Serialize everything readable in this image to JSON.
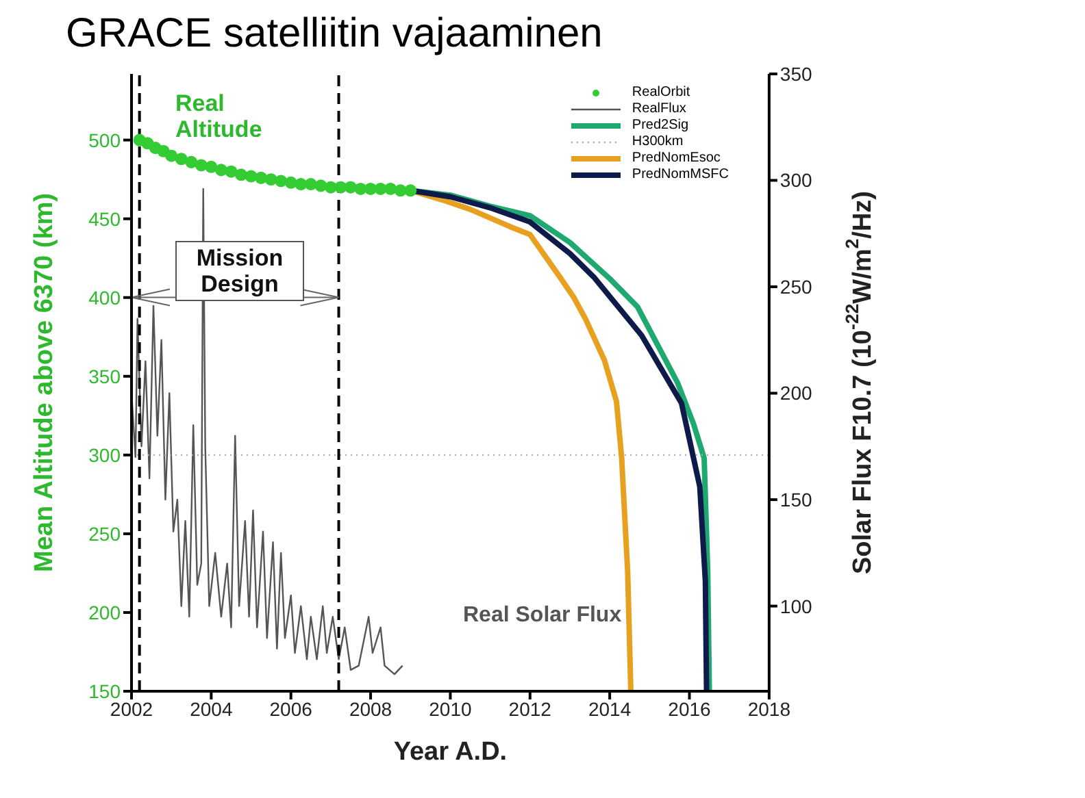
{
  "chart_data": {
    "type": "line",
    "title": "GRACE satelliitin vajaaminen",
    "xlabel": "Year A.D.",
    "ylabel": "Mean Altitude above 6370 (km)",
    "y2label": "Solar Flux F10.7 (10$^{-22}$W/m$^{2}$/Hz)",
    "xlim": [
      2002,
      2018
    ],
    "xticks": [
      2002,
      2004,
      2006,
      2008,
      2010,
      2012,
      2014,
      2016,
      2018
    ],
    "ylim": [
      150,
      542
    ],
    "yticks": [
      150,
      200,
      250,
      300,
      350,
      400,
      450,
      500
    ],
    "y2lim": [
      60,
      350
    ],
    "y2ticks": [
      100,
      150,
      200,
      250,
      300,
      350
    ],
    "legend": "top right",
    "series": [
      {
        "name": "RealOrbit",
        "type": "scatter",
        "color": "#33cc33",
        "x": [
          2002.2,
          2002.4,
          2002.6,
          2002.8,
          2003,
          2003.25,
          2003.5,
          2003.75,
          2004,
          2004.25,
          2004.5,
          2004.75,
          2005,
          2005.25,
          2005.5,
          2005.75,
          2006,
          2006.25,
          2006.5,
          2006.75,
          2007,
          2007.25,
          2007.5,
          2007.75,
          2008,
          2008.25,
          2008.5,
          2008.75,
          2009
        ],
        "values": [
          500,
          498,
          495,
          493,
          490,
          488,
          486,
          484,
          483,
          481,
          480,
          478,
          477,
          476,
          475,
          474,
          473,
          472,
          472,
          471,
          470,
          470,
          470,
          469,
          469,
          469,
          469,
          468,
          468
        ]
      },
      {
        "name": "RealFlux",
        "axis": "y2",
        "color": "#555555",
        "x": [
          2002.0,
          2002.1,
          2002.15,
          2002.25,
          2002.35,
          2002.45,
          2002.55,
          2002.65,
          2002.75,
          2002.85,
          2002.95,
          2003.05,
          2003.15,
          2003.25,
          2003.35,
          2003.45,
          2003.55,
          2003.65,
          2003.75,
          2003.8,
          2003.85,
          2003.95,
          2004.1,
          2004.25,
          2004.4,
          2004.5,
          2004.6,
          2004.7,
          2004.85,
          2004.95,
          2005.05,
          2005.15,
          2005.3,
          2005.4,
          2005.55,
          2005.65,
          2005.75,
          2005.85,
          2006.0,
          2006.1,
          2006.25,
          2006.4,
          2006.5,
          2006.65,
          2006.8,
          2006.9,
          2007.05,
          2007.2,
          2007.35,
          2007.5,
          2007.7,
          2007.95,
          2008.05,
          2008.25,
          2008.35,
          2008.6,
          2008.8
        ],
        "values": [
          200,
          170,
          235,
          175,
          215,
          160,
          241,
          180,
          225,
          150,
          200,
          135,
          150,
          100,
          140,
          95,
          185,
          110,
          120,
          296,
          175,
          100,
          125,
          95,
          120,
          90,
          180,
          100,
          140,
          95,
          145,
          90,
          135,
          85,
          130,
          80,
          125,
          85,
          105,
          78,
          100,
          75,
          95,
          75,
          100,
          78,
          95,
          75,
          90,
          70,
          72,
          95,
          78,
          90,
          72,
          68,
          72
        ]
      },
      {
        "name": "Pred2Sig",
        "color": "#1fa870",
        "x": [
          2009,
          2010,
          2011,
          2012,
          2013,
          2014,
          2014.7,
          2015.2,
          2015.7,
          2016.1,
          2016.37,
          2016.46,
          2016.5
        ],
        "values": [
          468,
          465,
          458,
          452,
          435,
          412,
          394,
          370,
          346,
          320,
          298,
          226,
          150
        ]
      },
      {
        "name": "H300km",
        "line_style": "dotted",
        "color": "#aaaaaa",
        "x": [
          2002,
          2018
        ],
        "values": [
          300,
          300
        ]
      },
      {
        "name": "PredNomEsoc",
        "color": "#e8a020",
        "x": [
          2009,
          2009.8,
          2010.5,
          2011.5,
          2012,
          2012.75,
          2013.1,
          2013.4,
          2013.87,
          2014.17,
          2014.3,
          2014.45,
          2014.53
        ],
        "values": [
          468,
          462,
          456,
          445,
          440,
          413,
          400,
          386,
          360,
          334,
          298,
          226,
          150
        ]
      },
      {
        "name": "PredNomMSFC",
        "color": "#0d1a4a",
        "x": [
          2009,
          2010,
          2011,
          2012,
          2013,
          2013.6,
          2014.8,
          2015.8,
          2016.26,
          2016.4,
          2016.43
        ],
        "values": [
          468,
          464,
          457,
          448,
          428,
          413,
          376,
          333,
          280,
          220,
          150
        ]
      }
    ],
    "ref_lines": [
      {
        "axis": "x",
        "value": 2002.2,
        "line_style": "dashed",
        "color": "#000000"
      },
      {
        "axis": "x",
        "value": 2007.2,
        "line_style": "dashed",
        "color": "#000000"
      }
    ],
    "annotations": [
      "Real Altitude",
      "Mission Design",
      "Real Solar Flux"
    ]
  }
}
